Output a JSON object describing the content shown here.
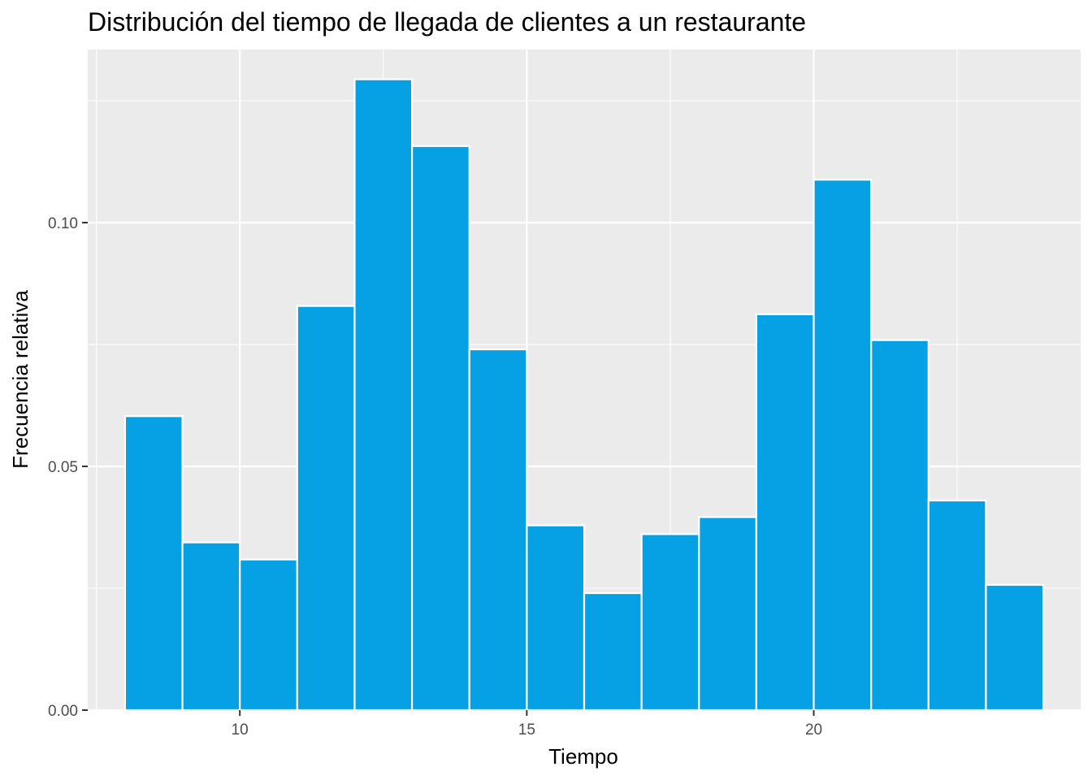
{
  "chart_data": {
    "type": "bar",
    "title": "Distribución del tiempo de llegada de clientes a un restaurante",
    "xlabel": "Tiempo",
    "ylabel": "Frecuencia relativa",
    "xlim": [
      7.35,
      24.65
    ],
    "ylim": [
      0,
      0.1355
    ],
    "x_ticks": [
      10,
      15,
      20
    ],
    "x_tick_labels": [
      "10",
      "15",
      "20"
    ],
    "y_ticks": [
      0,
      0.05,
      0.1
    ],
    "y_tick_labels": [
      "0.00",
      "0.05",
      "0.10"
    ],
    "bin_width": 1,
    "bins": [
      {
        "start": 8,
        "end": 9,
        "value": 0.0603
      },
      {
        "start": 9,
        "end": 10,
        "value": 0.0344
      },
      {
        "start": 10,
        "end": 11,
        "value": 0.0309
      },
      {
        "start": 11,
        "end": 12,
        "value": 0.0829
      },
      {
        "start": 12,
        "end": 13,
        "value": 0.1294
      },
      {
        "start": 13,
        "end": 14,
        "value": 0.1157
      },
      {
        "start": 14,
        "end": 15,
        "value": 0.074
      },
      {
        "start": 15,
        "end": 16,
        "value": 0.0379
      },
      {
        "start": 16,
        "end": 17,
        "value": 0.024
      },
      {
        "start": 17,
        "end": 18,
        "value": 0.0361
      },
      {
        "start": 18,
        "end": 19,
        "value": 0.0396
      },
      {
        "start": 19,
        "end": 20,
        "value": 0.0812
      },
      {
        "start": 20,
        "end": 21,
        "value": 0.1088
      },
      {
        "start": 21,
        "end": 22,
        "value": 0.0759
      },
      {
        "start": 22,
        "end": 23,
        "value": 0.043
      },
      {
        "start": 23,
        "end": 24,
        "value": 0.0257
      }
    ],
    "grid": true,
    "colors": {
      "bar_fill": "#06a1e5",
      "bar_stroke": "#ffffff",
      "panel_background": "#ebebeb",
      "grid": "#ffffff"
    }
  }
}
